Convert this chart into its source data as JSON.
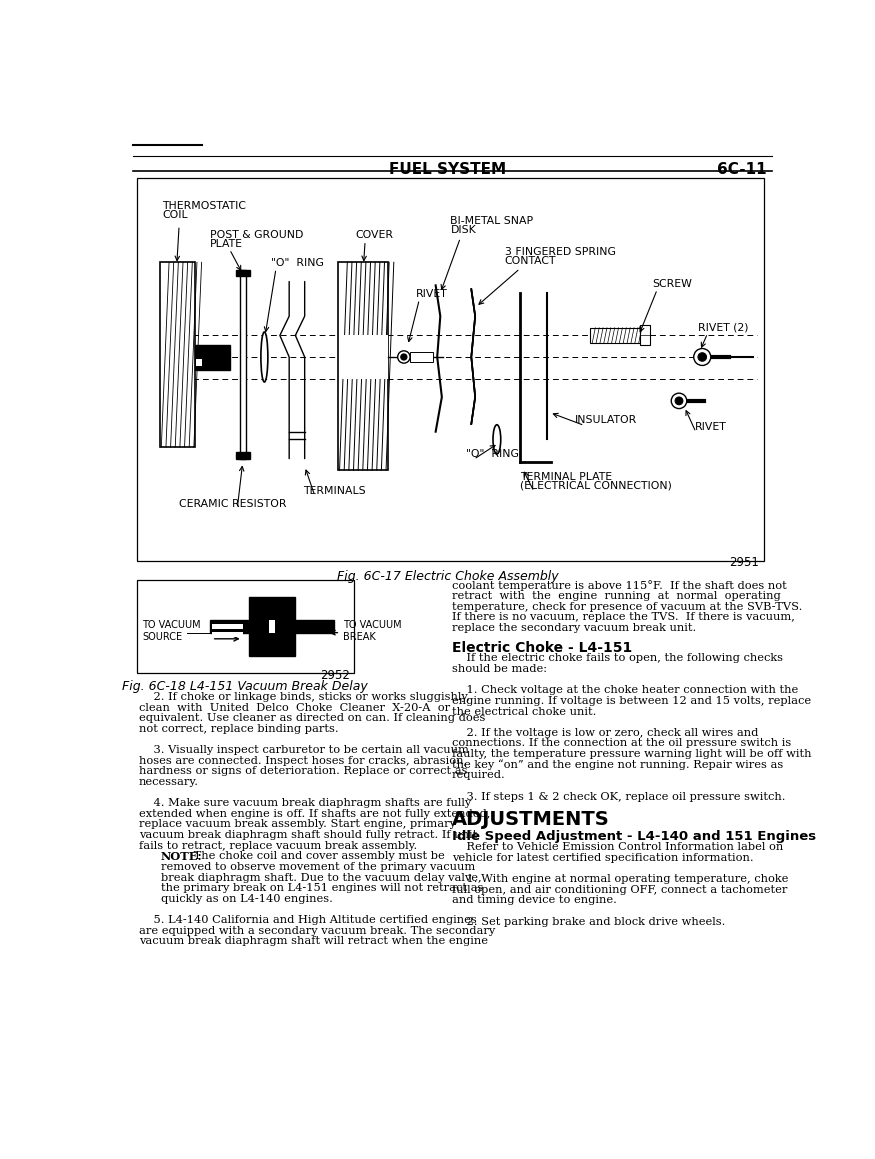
{
  "page_header_left": "FUEL SYSTEM",
  "page_header_right": "6C-11",
  "fig1_caption": "Fig. 6C-17 Electric Choke Assembly",
  "fig2_caption": "Fig. 6C-18 L4-151 Vacuum Break Delay",
  "fig1_number": "2951",
  "fig2_number": "2952",
  "section_heading": "ADJUSTMENTS",
  "subheading1": "Electric Choke - L4-151",
  "subheading2": "Idle Speed Adjustment - L4-140 and 151 Engines",
  "background": "#ffffff",
  "body_text_left": [
    "    2. If choke or linkage binds, sticks or works sluggishly,",
    "clean  with  United  Delco  Choke  Cleaner  X-20-A  or",
    "equivalent. Use cleaner as directed on can. If cleaning does",
    "not correct, replace binding parts.",
    "",
    "    3. Visually inspect carburetor to be certain all vacuum",
    "hoses are connected. Inspect hoses for cracks, abrasion,",
    "hardness or signs of deterioration. Replace or correct as",
    "necessary.",
    "",
    "    4. Make sure vacuum break diaphragm shafts are fully",
    "extended when engine is off. If shafts are not fully extended,",
    "replace vacuum break assembly. Start engine, primary",
    "vacuum break diaphragm shaft should fully retract. If unit",
    "fails to retract, replace vacuum break assembly.",
    "    NOTE: The choke coil and cover assembly must be",
    "removed to observe movement of the primary vacuum",
    "break diaphragm shaft. Due to the vacuum delay valve,",
    "the primary break on L4-151 engines will not retract as",
    "quickly as on L4-140 engines.",
    "",
    "    5. L4-140 California and High Altitude certified engines",
    "are equipped with a secondary vacuum break. The secondary",
    "vacuum break diaphragm shaft will retract when the engine"
  ],
  "body_text_right_top": [
    "coolant temperature is above 115°F.  If the shaft does not",
    "retract  with  the  engine  running  at  normal  operating",
    "temperature, check for presence of vacuum at the SVB-TVS.",
    "If there is no vacuum, replace the TVS.  If there is vacuum,",
    "replace the secondary vacuum break unit."
  ],
  "body_text_right_elec": [
    "    If the electric choke fails to open, the following checks",
    "should be made:",
    "",
    "    1. Check voltage at the choke heater connection with the",
    "engine running. If voltage is between 12 and 15 volts, replace",
    "the electrical choke unit.",
    "",
    "    2. If the voltage is low or zero, check all wires and",
    "connections. If the connection at the oil pressure switch is",
    "faulty, the temperature pressure warning light will be off with",
    "the key “on” and the engine not running. Repair wires as",
    "required.",
    "",
    "    3. If steps 1 & 2 check OK, replace oil pressure switch."
  ],
  "body_text_right_adj": [
    "    Refer to Vehicle Emission Control Information label on",
    "vehicle for latest certified specification information.",
    "",
    "    1. With engine at normal operating temperature, choke",
    "full open, and air conditioning OFF, connect a tachometer",
    "and timing device to engine.",
    "",
    "    2. Set parking brake and block drive wheels."
  ],
  "note_text": [
    "    NOTE: The choke coil and cover assembly must be",
    "removed to observe movement of the primary vacuum",
    "break diaphragm shaft. Due to the vacuum delay valve,",
    "the primary break on L4-151 engines will not retract as",
    "quickly as on L4-140 engines."
  ]
}
